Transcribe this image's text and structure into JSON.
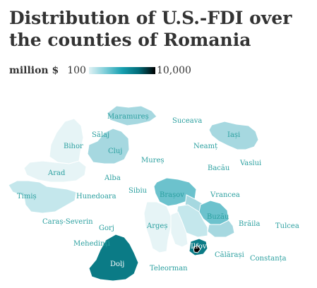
{
  "title": "Distribution of U.S.-FDI over the counties of Romania",
  "legend": {
    "unit": "million $",
    "min": "100",
    "max": "10,000"
  },
  "colors": {
    "label": "#2a9f9f",
    "lightest": "#e6f4f6",
    "light": "#c4e7ec",
    "medium": "#a6d8e0",
    "mid_dark": "#6cc2cd",
    "dark": "#0b7b86",
    "darkest": "#000000"
  },
  "map": {
    "counties": [
      {
        "name": "Maramureș",
        "fill": "#a6d8e0",
        "labeled": true
      },
      {
        "name": "Suceava",
        "fill": "none",
        "labeled": true
      },
      {
        "name": "Sălaj",
        "fill": "none",
        "labeled": true
      },
      {
        "name": "Iași",
        "fill": "#a6d8e0",
        "labeled": true
      },
      {
        "name": "Bihor",
        "fill": "#e6f4f6",
        "labeled": true
      },
      {
        "name": "Neamț",
        "fill": "none",
        "labeled": true
      },
      {
        "name": "Cluj",
        "fill": "#a6d8e0",
        "labeled": true
      },
      {
        "name": "Mureș",
        "fill": "none",
        "labeled": true
      },
      {
        "name": "Vaslui",
        "fill": "none",
        "labeled": true
      },
      {
        "name": "Bacău",
        "fill": "none",
        "labeled": true
      },
      {
        "name": "Arad",
        "fill": "#e6f4f6",
        "labeled": true
      },
      {
        "name": "Alba",
        "fill": "none",
        "labeled": true
      },
      {
        "name": "Timiș",
        "fill": "#c4e7ec",
        "labeled": true
      },
      {
        "name": "Sibiu",
        "fill": "none",
        "labeled": true
      },
      {
        "name": "Brașov",
        "fill": "#6cc2cd",
        "labeled": true
      },
      {
        "name": "Vrancea",
        "fill": "none",
        "labeled": true
      },
      {
        "name": "Hunedoara",
        "fill": "none",
        "labeled": true
      },
      {
        "name": "Covasna",
        "fill": "#a6d8e0",
        "labeled": false
      },
      {
        "name": "Buzău",
        "fill": "#6cc2cd",
        "labeled": true
      },
      {
        "name": "Caraș-Severin",
        "fill": "none",
        "labeled": true
      },
      {
        "name": "Argeș",
        "fill": "#e6f4f6",
        "labeled": true
      },
      {
        "name": "Prahova",
        "fill": "#c4e7ec",
        "labeled": false
      },
      {
        "name": "Brăila",
        "fill": "none",
        "labeled": true
      },
      {
        "name": "Tulcea",
        "fill": "none",
        "labeled": true
      },
      {
        "name": "Gorj",
        "fill": "none",
        "labeled": true
      },
      {
        "name": "Dâmbovița",
        "fill": "#e6f4f6",
        "labeled": false
      },
      {
        "name": "Ialomița",
        "fill": "#a6d8e0",
        "labeled": false
      },
      {
        "name": "Mehedinți",
        "fill": "none",
        "labeled": true
      },
      {
        "name": "Ilfov",
        "fill": "#0b7b86",
        "labeled": true
      },
      {
        "name": "București",
        "fill": "#000000",
        "labeled": false
      },
      {
        "name": "Dolj",
        "fill": "#0b7b86",
        "labeled": true
      },
      {
        "name": "Călărași",
        "fill": "none",
        "labeled": true
      },
      {
        "name": "Constanța",
        "fill": "none",
        "labeled": true
      },
      {
        "name": "Teleorman",
        "fill": "none",
        "labeled": true
      }
    ]
  }
}
